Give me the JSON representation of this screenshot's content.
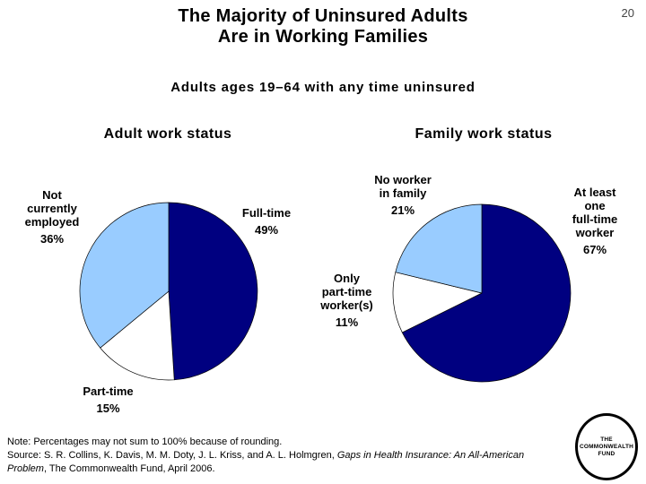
{
  "slide": {
    "number": "20",
    "title_line1": "The Majority of Uninsured Adults",
    "title_line2": "Are in Working Families",
    "subtitle": "Adults ages 19–64 with any time uninsured"
  },
  "colors": {
    "dark_blue": "#000080",
    "light_blue": "#99CCFF",
    "white": "#FFFFFF"
  },
  "chart_data": [
    {
      "type": "pie",
      "title": "Adult work status",
      "start_angle_deg": 0,
      "direction": "clockwise",
      "legend_position": "none",
      "slices": [
        {
          "label": "Full-time",
          "pct": 49,
          "color": "#000080"
        },
        {
          "label": "Part-time",
          "pct": 15,
          "color": "#FFFFFF"
        },
        {
          "label": "Not currently employed",
          "pct": 36,
          "color": "#99CCFF"
        }
      ]
    },
    {
      "type": "pie",
      "title": "Family work status",
      "start_angle_deg": 0,
      "direction": "clockwise",
      "legend_position": "none",
      "slices": [
        {
          "label": "At least one full-time worker",
          "pct": 67,
          "color": "#000080"
        },
        {
          "label": "Only part-time worker(s)",
          "pct": 11,
          "color": "#FFFFFF"
        },
        {
          "label": "No worker in family",
          "pct": 21,
          "color": "#99CCFF"
        }
      ]
    }
  ],
  "callouts": {
    "pie1": [
      {
        "lines": [
          "Not",
          "currently",
          "employed"
        ],
        "pct": "36%"
      },
      {
        "lines": [
          "Full-time"
        ],
        "pct": "49%"
      },
      {
        "lines": [
          "Part-time"
        ],
        "pct": "15%"
      }
    ],
    "pie2": [
      {
        "lines": [
          "No worker",
          "in family"
        ],
        "pct": "21%"
      },
      {
        "lines": [
          "At least",
          "one",
          "full-time",
          "worker"
        ],
        "pct": "67%"
      },
      {
        "lines": [
          "Only",
          "part-time",
          "worker(s)"
        ],
        "pct": "11%"
      }
    ]
  },
  "note": {
    "line1": "Note: Percentages may not sum to 100% because of rounding.",
    "source_prefix": "Source: S. R. Collins, K. Davis, M. M. Doty, J. L. Kriss, and A. L. Holmgren, ",
    "source_title": "Gaps in Health Insurance: An All-American Problem",
    "source_suffix": ", The Commonwealth Fund, April 2006."
  },
  "logo": {
    "lines": [
      "THE",
      "COMMONWEALTH",
      "FUND"
    ]
  }
}
